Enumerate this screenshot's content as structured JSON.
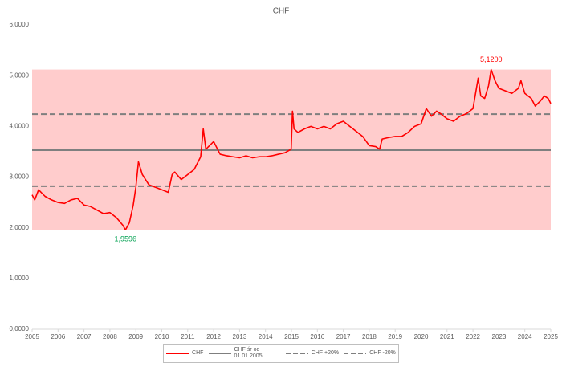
{
  "chart_data": {
    "type": "line",
    "title": "CHF",
    "x": [
      2005.0,
      2005.1,
      2005.25,
      2005.5,
      2005.75,
      2006.0,
      2006.25,
      2006.5,
      2006.75,
      2007.0,
      2007.25,
      2007.5,
      2007.75,
      2008.0,
      2008.25,
      2008.5,
      2008.6,
      2008.75,
      2008.9,
      2009.0,
      2009.1,
      2009.25,
      2009.5,
      2009.75,
      2010.0,
      2010.25,
      2010.4,
      2010.5,
      2010.75,
      2011.0,
      2011.25,
      2011.5,
      2011.6,
      2011.7,
      2011.9,
      2012.0,
      2012.25,
      2012.5,
      2012.75,
      2013.0,
      2013.25,
      2013.5,
      2013.75,
      2014.0,
      2014.25,
      2014.5,
      2014.75,
      2014.99,
      2015.04,
      2015.1,
      2015.25,
      2015.5,
      2015.75,
      2016.0,
      2016.25,
      2016.5,
      2016.75,
      2017.0,
      2017.25,
      2017.5,
      2017.75,
      2018.0,
      2018.25,
      2018.4,
      2018.5,
      2018.75,
      2019.0,
      2019.25,
      2019.5,
      2019.75,
      2020.0,
      2020.2,
      2020.4,
      2020.6,
      2020.75,
      2021.0,
      2021.25,
      2021.5,
      2021.75,
      2022.0,
      2022.2,
      2022.3,
      2022.45,
      2022.6,
      2022.7,
      2022.85,
      2023.0,
      2023.25,
      2023.5,
      2023.75,
      2023.85,
      2024.0,
      2024.25,
      2024.4,
      2024.6,
      2024.75,
      2024.9,
      2025.0
    ],
    "series": [
      {
        "name": "CHF",
        "color": "#ff0000",
        "values": [
          2.65,
          2.55,
          2.75,
          2.62,
          2.55,
          2.5,
          2.48,
          2.55,
          2.58,
          2.45,
          2.42,
          2.35,
          2.28,
          2.3,
          2.2,
          2.05,
          1.9596,
          2.1,
          2.45,
          2.8,
          3.3,
          3.05,
          2.85,
          2.8,
          2.75,
          2.7,
          3.05,
          3.1,
          2.95,
          3.05,
          3.15,
          3.4,
          3.95,
          3.55,
          3.65,
          3.7,
          3.45,
          3.42,
          3.4,
          3.38,
          3.42,
          3.38,
          3.4,
          3.4,
          3.42,
          3.45,
          3.48,
          3.55,
          4.3,
          3.95,
          3.88,
          3.95,
          4.0,
          3.95,
          4.0,
          3.95,
          4.05,
          4.1,
          4.0,
          3.9,
          3.8,
          3.62,
          3.6,
          3.55,
          3.75,
          3.78,
          3.8,
          3.8,
          3.88,
          4.0,
          4.05,
          4.35,
          4.2,
          4.3,
          4.25,
          4.15,
          4.1,
          4.2,
          4.25,
          4.35,
          4.95,
          4.6,
          4.55,
          4.8,
          5.12,
          4.9,
          4.75,
          4.7,
          4.65,
          4.75,
          4.9,
          4.65,
          4.55,
          4.4,
          4.5,
          4.6,
          4.55,
          4.45
        ]
      }
    ],
    "reference_lines": [
      {
        "name": "CHF śr od 01.01.2005.",
        "value": 3.53,
        "color": "#7f7f7f",
        "dashed": false
      },
      {
        "name": "CHF +20%",
        "value": 4.24,
        "color": "#7f7f7f",
        "dashed": true
      },
      {
        "name": "CHF -20%",
        "value": 2.82,
        "color": "#7f7f7f",
        "dashed": true
      }
    ],
    "band_color": "#ffcccc",
    "annotations": [
      {
        "label": "5,1200",
        "x": 2022.7,
        "value": 5.12,
        "color": "#ff0000"
      },
      {
        "label": "1,9596",
        "x": 2008.6,
        "value": 1.9596,
        "color": "#00a050"
      }
    ],
    "xlim": [
      2005,
      2025
    ],
    "xticks": [
      2005,
      2006,
      2007,
      2008,
      2009,
      2010,
      2011,
      2012,
      2013,
      2014,
      2015,
      2016,
      2017,
      2018,
      2019,
      2020,
      2021,
      2022,
      2023,
      2024,
      2025
    ],
    "ylim": [
      0,
      6
    ],
    "yticks": [
      {
        "value": 0,
        "label": "0,0000"
      },
      {
        "value": 1,
        "label": "1,0000"
      },
      {
        "value": 2,
        "label": "2,0000"
      },
      {
        "value": 3,
        "label": "3,0000"
      },
      {
        "value": 4,
        "label": "4,0000"
      },
      {
        "value": 5,
        "label": "5,0000"
      },
      {
        "value": 6,
        "label": "6,0000"
      }
    ]
  }
}
